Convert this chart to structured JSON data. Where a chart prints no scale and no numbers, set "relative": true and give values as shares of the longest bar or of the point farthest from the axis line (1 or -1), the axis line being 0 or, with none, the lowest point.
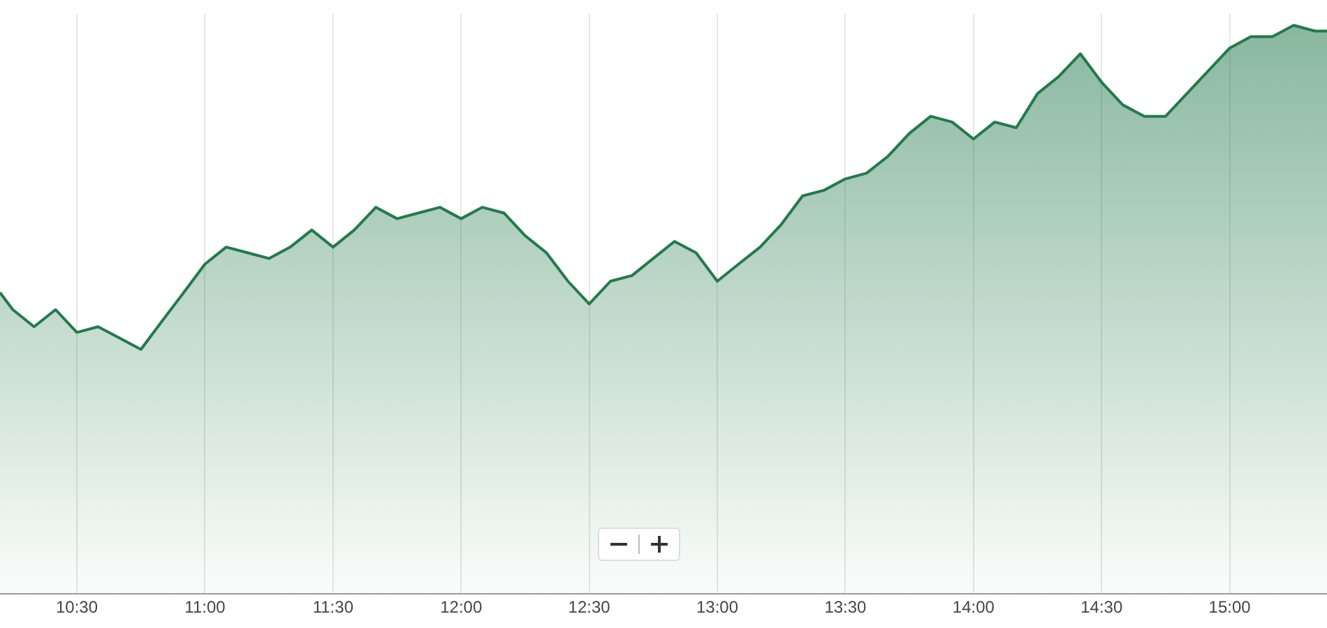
{
  "chart_data": {
    "type": "area",
    "relative": true,
    "grid": "x",
    "marker": "none",
    "line_style": "solid",
    "x": [
      10.2,
      10.25,
      10.333,
      10.417,
      10.5,
      10.583,
      10.667,
      10.75,
      10.833,
      10.917,
      11,
      11.083,
      11.167,
      11.25,
      11.333,
      11.417,
      11.5,
      11.583,
      11.667,
      11.75,
      11.833,
      11.917,
      12,
      12.083,
      12.167,
      12.25,
      12.333,
      12.417,
      12.5,
      12.583,
      12.667,
      12.75,
      12.833,
      12.917,
      13,
      13.083,
      13.167,
      13.25,
      13.333,
      13.417,
      13.5,
      13.583,
      13.667,
      13.75,
      13.833,
      13.917,
      14,
      14.083,
      14.167,
      14.25,
      14.333,
      14.417,
      14.5,
      14.583,
      14.667,
      14.75,
      14.833,
      14.917,
      15,
      15.083,
      15.167,
      15.25,
      15.333,
      15.38
    ],
    "xlim": [
      10.2,
      15.38
    ],
    "xticks": [
      {
        "value": 10.5,
        "label": "10:30"
      },
      {
        "value": 11,
        "label": "11:00"
      },
      {
        "value": 11.5,
        "label": "11:30"
      },
      {
        "value": 12,
        "label": "12:00"
      },
      {
        "value": 12.5,
        "label": "12:30"
      },
      {
        "value": 13,
        "label": "13:00"
      },
      {
        "value": 13.5,
        "label": "13:30"
      },
      {
        "value": 14,
        "label": "14:00"
      },
      {
        "value": 14.5,
        "label": "14:30"
      },
      {
        "value": 15,
        "label": "15:00"
      }
    ],
    "series": [
      {
        "color": "#237a4b",
        "values": [
          0.53,
          0.5,
          0.47,
          0.5,
          0.46,
          0.47,
          0.45,
          0.43,
          0.48,
          0.53,
          0.58,
          0.61,
          0.6,
          0.59,
          0.61,
          0.64,
          0.61,
          0.64,
          0.68,
          0.66,
          0.67,
          0.68,
          0.66,
          0.68,
          0.67,
          0.63,
          0.6,
          0.55,
          0.51,
          0.55,
          0.56,
          0.59,
          0.62,
          0.6,
          0.55,
          0.58,
          0.61,
          0.65,
          0.7,
          0.71,
          0.73,
          0.74,
          0.77,
          0.81,
          0.84,
          0.83,
          0.8,
          0.83,
          0.82,
          0.88,
          0.91,
          0.95,
          0.9,
          0.86,
          0.84,
          0.84,
          0.88,
          0.92,
          0.96,
          0.98,
          0.98,
          1,
          0.99,
          0.99
        ]
      }
    ]
  }
}
